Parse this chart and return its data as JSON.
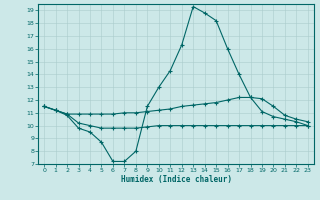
{
  "xlabel": "Humidex (Indice chaleur)",
  "xlim": [
    -0.5,
    23.5
  ],
  "ylim": [
    7,
    19.5
  ],
  "yticks": [
    7,
    8,
    9,
    10,
    11,
    12,
    13,
    14,
    15,
    16,
    17,
    18,
    19
  ],
  "xticks": [
    0,
    1,
    2,
    3,
    4,
    5,
    6,
    7,
    8,
    9,
    10,
    11,
    12,
    13,
    14,
    15,
    16,
    17,
    18,
    19,
    20,
    21,
    22,
    23
  ],
  "bg_color": "#cce8e8",
  "line_color": "#006666",
  "grid_color": "#aacccc",
  "line1_x": [
    0,
    1,
    2,
    3,
    4,
    5,
    6,
    7,
    8,
    9,
    10,
    11,
    12,
    13,
    14,
    15,
    16,
    17,
    18,
    19,
    20,
    21,
    22,
    23
  ],
  "line1_y": [
    11.5,
    11.2,
    10.8,
    9.8,
    9.5,
    8.7,
    7.2,
    7.2,
    8.0,
    11.5,
    13.0,
    14.3,
    16.3,
    19.3,
    18.8,
    18.2,
    16.0,
    14.0,
    12.2,
    11.1,
    10.7,
    10.5,
    10.3,
    10.0
  ],
  "line2_x": [
    0,
    1,
    2,
    3,
    4,
    5,
    6,
    7,
    8,
    9,
    10,
    11,
    12,
    13,
    14,
    15,
    16,
    17,
    18,
    19,
    20,
    21,
    22,
    23
  ],
  "line2_y": [
    11.5,
    11.2,
    10.9,
    10.9,
    10.9,
    10.9,
    10.9,
    11.0,
    11.0,
    11.1,
    11.2,
    11.3,
    11.5,
    11.6,
    11.7,
    11.8,
    12.0,
    12.2,
    12.2,
    12.1,
    11.5,
    10.8,
    10.5,
    10.3
  ],
  "line3_x": [
    0,
    1,
    2,
    3,
    4,
    5,
    6,
    7,
    8,
    9,
    10,
    11,
    12,
    13,
    14,
    15,
    16,
    17,
    18,
    19,
    20,
    21,
    22,
    23
  ],
  "line3_y": [
    11.5,
    11.2,
    10.9,
    10.2,
    10.0,
    9.8,
    9.8,
    9.8,
    9.8,
    9.9,
    10.0,
    10.0,
    10.0,
    10.0,
    10.0,
    10.0,
    10.0,
    10.0,
    10.0,
    10.0,
    10.0,
    10.0,
    10.0,
    10.0
  ]
}
